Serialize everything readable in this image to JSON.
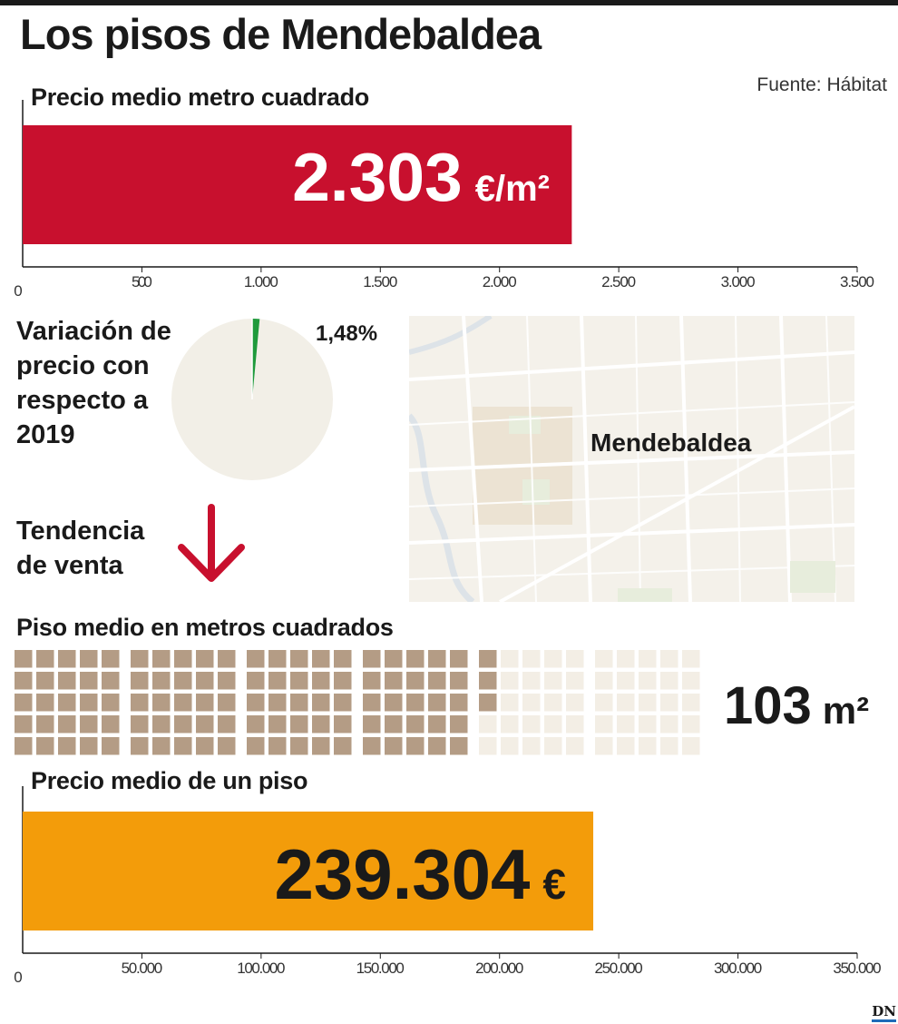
{
  "title": "Los pisos de  Mendebaldea",
  "source": "Fuente: Hábitat",
  "colors": {
    "price_bar": "#c8102e",
    "flat_bar": "#f39c0a",
    "pie_bg": "#f2efe7",
    "pie_slice": "#1f9a3c",
    "waffle_filled": "#b49c85",
    "waffle_empty": "#f3eee5",
    "arrow": "#c8102e"
  },
  "sections": {
    "price_m2_title": "Precio medio metro cuadrado",
    "variation_title": "Variación de precio con respecto a 2019",
    "trend_title": "Tendencia de venta",
    "size_title": "Piso medio en metros cuadrados",
    "flat_price_title": "Precio medio de un piso"
  },
  "trend_icon": "arrow-down-icon",
  "map": {
    "label": "Mendebaldea"
  },
  "chart_data": [
    {
      "type": "bar",
      "title": "Precio medio metro cuadrado",
      "values": [
        2303
      ],
      "value_label": "2.303",
      "unit_label": "€/m²",
      "xlim": [
        0,
        3500
      ],
      "ticks": [
        "0",
        "500",
        "1.000",
        "1.500",
        "2.000",
        "2.500",
        "3.000",
        "3.500"
      ]
    },
    {
      "type": "pie",
      "title": "Variación de precio con respecto a 2019",
      "values": [
        1.48,
        98.52
      ],
      "value_label": "1,48%"
    },
    {
      "type": "waffle",
      "title": "Piso medio en metros cuadrados",
      "value": 103,
      "total": 150,
      "value_label": "103",
      "unit_label": "m²"
    },
    {
      "type": "bar",
      "title": "Precio medio de un piso",
      "values": [
        239304
      ],
      "value_label": "239.304",
      "unit_label": "€",
      "xlim": [
        0,
        350000
      ],
      "ticks": [
        "0",
        "50.000",
        "100.000",
        "150.000",
        "200.000",
        "250.000",
        "300.000",
        "350.000"
      ]
    }
  ]
}
